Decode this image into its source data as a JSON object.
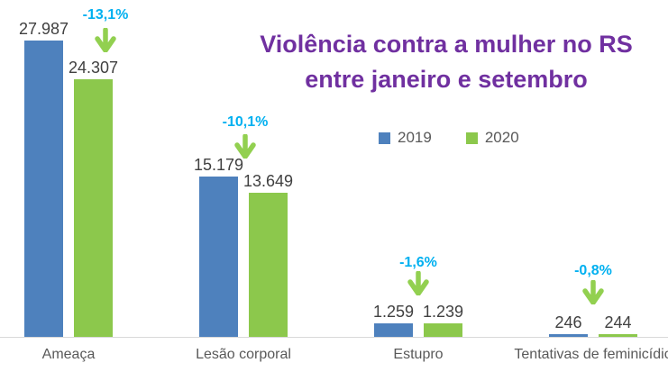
{
  "chart_data": {
    "type": "bar",
    "title": "Violência contra a mulher no RS entre janeiro e setembro",
    "title_lines": [
      "Violência contra a mulher no RS",
      "entre janeiro e setembro"
    ],
    "categories": [
      "Ameaça",
      "Lesão corporal",
      "Estupro",
      "Tentativas de feminicídio"
    ],
    "series": [
      {
        "name": "2019",
        "color": "#4E81BD",
        "values": [
          27987,
          15179,
          1259,
          246
        ]
      },
      {
        "name": "2020",
        "color": "#8CC84C",
        "values": [
          24307,
          13649,
          1239,
          244
        ]
      }
    ],
    "value_labels": [
      [
        "27.987",
        "15.179",
        "1.259",
        "246"
      ],
      [
        "24.307",
        "13.649",
        "1.239",
        "244"
      ]
    ],
    "pct_change_labels": [
      "-13,1%",
      "-10,1%",
      "-1,6%",
      "-0,8%"
    ],
    "xlabel": "",
    "ylabel": "",
    "ylim": [
      0,
      27987
    ],
    "grid": false,
    "legend_position": "middle-right-of-title"
  },
  "colors": {
    "title": "#7030A0",
    "pct": "#00B0F0",
    "arrow": "#92D050",
    "value_label": "#404040",
    "category_label": "#595959",
    "axis_line": "#D9D9D9",
    "series_2019": "#4E81BD",
    "series_2020": "#8CC84C"
  }
}
